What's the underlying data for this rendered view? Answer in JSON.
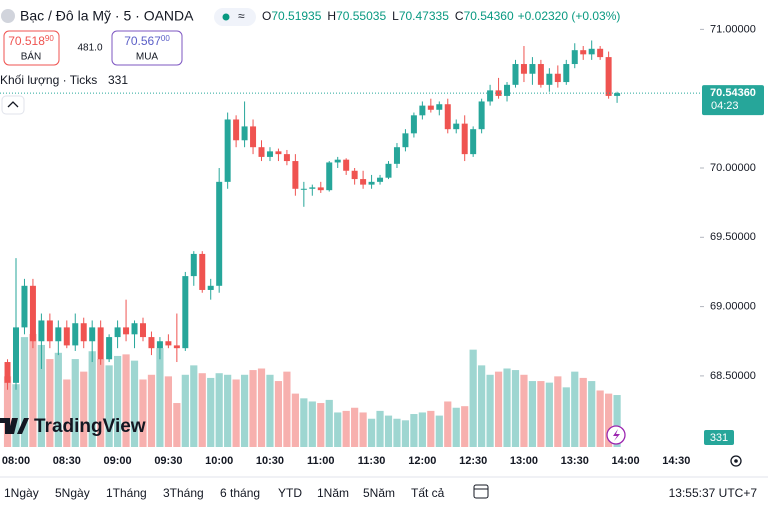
{
  "header": {
    "title": "Bạc / Đô la Mỹ · 5 · OANDA",
    "ohlc": [
      {
        "key": "O",
        "value": "70.51935"
      },
      {
        "key": "H",
        "value": "70.55035"
      },
      {
        "key": "L",
        "value": "70.47335"
      },
      {
        "key": "C",
        "value": "70.54360"
      }
    ],
    "change": "+0.02320 (+0.03%)"
  },
  "bid": {
    "price": "70.518",
    "pip": "90",
    "label": "BÁN"
  },
  "spread": "481.0",
  "ask": {
    "price": "70.567",
    "pip": "00",
    "label": "MUA"
  },
  "volume_legend": "Khối lượng · Ticks",
  "price_label": "70.54360",
  "countdown": "04:23",
  "logo": "TradingView",
  "toolbar": {
    "ranges": [
      "1Ngày",
      "5Ngày",
      "1Tháng",
      "3Tháng",
      "6 tháng",
      "YTD",
      "1Năm",
      "5Năm",
      "Tất cả"
    ],
    "clock": "13:55:37 UTC+7"
  },
  "chart_data": {
    "type": "candlestick",
    "categories": [
      null,
      "08:00",
      null,
      null,
      null,
      null,
      null,
      "08:30",
      null,
      null,
      null,
      null,
      null,
      "09:00",
      null,
      null,
      null,
      null,
      null,
      "09:30",
      null,
      null,
      null,
      null,
      null,
      "10:00",
      null,
      null,
      null,
      null,
      null,
      "10:30",
      null,
      null,
      null,
      null,
      null,
      "11:00",
      null,
      null,
      null,
      null,
      null,
      "11:30",
      null,
      null,
      null,
      null,
      null,
      "12:00",
      null,
      null,
      null,
      null,
      null,
      "12:30",
      null,
      null,
      null,
      null,
      null,
      "13:00",
      null,
      null,
      null,
      null,
      null,
      "13:30",
      null,
      null,
      null,
      null,
      null,
      "14:00",
      null,
      null,
      null,
      null,
      null,
      "14:30",
      null,
      null
    ],
    "open": [
      68.6,
      68.45,
      68.85,
      69.15,
      68.75,
      68.9,
      68.75,
      68.85,
      68.72,
      68.88,
      68.75,
      68.85,
      68.62,
      68.78,
      68.85,
      68.8,
      68.88,
      68.78,
      68.7,
      68.75,
      68.72,
      68.7,
      69.22,
      69.38,
      69.12,
      69.15,
      69.9,
      70.35,
      70.2,
      70.3,
      70.15,
      70.08,
      70.12,
      70.1,
      70.05,
      69.85,
      69.85,
      69.86,
      69.84,
      70.04,
      70.06,
      69.98,
      69.92,
      69.88,
      69.9,
      69.93,
      70.03,
      70.15,
      70.25,
      70.38,
      70.45,
      70.42,
      70.46,
      70.28,
      70.32,
      70.1,
      70.28,
      70.48,
      70.56,
      70.52,
      70.6,
      70.75,
      70.68,
      70.75,
      70.6,
      70.68,
      70.62,
      70.75,
      70.85,
      70.82,
      70.86,
      70.8,
      70.52,
      null,
      null,
      null,
      null,
      null,
      null,
      null,
      null,
      null
    ],
    "high": [
      68.62,
      69.35,
      69.2,
      69.2,
      68.95,
      68.95,
      68.9,
      68.9,
      68.95,
      68.92,
      68.9,
      68.9,
      68.8,
      68.9,
      69.05,
      68.9,
      68.92,
      68.82,
      68.78,
      68.8,
      68.95,
      69.25,
      69.4,
      69.4,
      69.2,
      70.0,
      70.4,
      70.38,
      70.48,
      70.35,
      70.2,
      70.15,
      70.14,
      70.13,
      70.1,
      69.9,
      69.88,
      69.9,
      70.05,
      70.08,
      70.07,
      70.0,
      69.98,
      69.95,
      69.95,
      70.05,
      70.18,
      70.28,
      70.4,
      70.48,
      70.5,
      70.48,
      70.5,
      70.35,
      70.38,
      70.3,
      70.5,
      70.6,
      70.65,
      70.62,
      70.78,
      70.88,
      70.8,
      70.78,
      70.72,
      70.74,
      70.78,
      70.9,
      70.88,
      70.92,
      70.88,
      70.84,
      70.55,
      null,
      null,
      null,
      null,
      null,
      null,
      null,
      null,
      null
    ],
    "low": [
      68.4,
      68.4,
      68.8,
      68.7,
      68.55,
      68.7,
      68.65,
      68.7,
      68.68,
      68.7,
      68.6,
      68.58,
      68.6,
      68.7,
      68.75,
      68.7,
      68.75,
      68.65,
      68.62,
      68.7,
      68.6,
      68.68,
      69.15,
      69.1,
      69.05,
      69.1,
      69.85,
      70.15,
      70.15,
      70.1,
      70.05,
      70.05,
      70.05,
      70.02,
      69.8,
      69.72,
      69.8,
      69.82,
      69.83,
      70.0,
      69.95,
      69.88,
      69.85,
      69.85,
      69.88,
      69.92,
      70.0,
      70.12,
      70.22,
      70.35,
      70.4,
      70.38,
      70.25,
      70.25,
      70.05,
      70.08,
      70.25,
      70.45,
      70.5,
      70.48,
      70.58,
      70.62,
      70.6,
      70.58,
      70.55,
      70.58,
      70.6,
      70.72,
      70.78,
      70.78,
      70.78,
      70.5,
      70.47,
      null,
      null,
      null,
      null,
      null,
      null,
      null,
      null,
      null
    ],
    "close": [
      68.45,
      68.85,
      69.15,
      68.75,
      68.9,
      68.75,
      68.85,
      68.72,
      68.88,
      68.75,
      68.85,
      68.62,
      68.78,
      68.85,
      68.8,
      68.88,
      68.78,
      68.7,
      68.75,
      68.72,
      68.7,
      69.22,
      69.38,
      69.12,
      69.15,
      69.9,
      70.35,
      70.2,
      70.3,
      70.15,
      70.08,
      70.12,
      70.1,
      70.05,
      69.85,
      69.85,
      69.86,
      69.84,
      70.04,
      70.06,
      69.98,
      69.92,
      69.88,
      69.9,
      69.93,
      70.03,
      70.15,
      70.25,
      70.38,
      70.45,
      70.42,
      70.46,
      70.28,
      70.32,
      70.1,
      70.28,
      70.48,
      70.56,
      70.52,
      70.6,
      70.75,
      70.68,
      70.75,
      70.6,
      70.68,
      70.62,
      70.75,
      70.85,
      70.82,
      70.86,
      70.8,
      70.52,
      70.54,
      null,
      null,
      null,
      null,
      null,
      null,
      null,
      null,
      null
    ],
    "volumes": [
      450,
      400,
      700,
      720,
      650,
      560,
      600,
      430,
      560,
      480,
      610,
      560,
      520,
      580,
      590,
      550,
      430,
      460,
      630,
      450,
      280,
      460,
      520,
      470,
      440,
      470,
      460,
      430,
      460,
      490,
      500,
      460,
      420,
      480,
      340,
      310,
      290,
      280,
      300,
      220,
      230,
      250,
      220,
      180,
      230,
      200,
      180,
      170,
      210,
      220,
      230,
      200,
      290,
      250,
      260,
      620,
      520,
      460,
      480,
      500,
      490,
      460,
      420,
      420,
      410,
      450,
      380,
      480,
      440,
      420,
      360,
      340,
      331,
      null,
      null,
      null,
      null,
      null,
      null,
      null,
      null,
      null
    ],
    "ylim": [
      67.987,
      71.212
    ],
    "yticks": [
      {
        "value": 68.5,
        "label": "68.50000"
      },
      {
        "value": 69,
        "label": "69.00000"
      },
      {
        "value": 69.5,
        "label": "69.50000"
      },
      {
        "value": 70,
        "label": "70.00000"
      },
      {
        "value": 71,
        "label": "71.00000"
      }
    ],
    "grid": false,
    "up_color": "#26a69a",
    "down_color": "#ef5350",
    "volume_up_color": "#9ed6d1",
    "volume_down_color": "#f7b0ae"
  }
}
